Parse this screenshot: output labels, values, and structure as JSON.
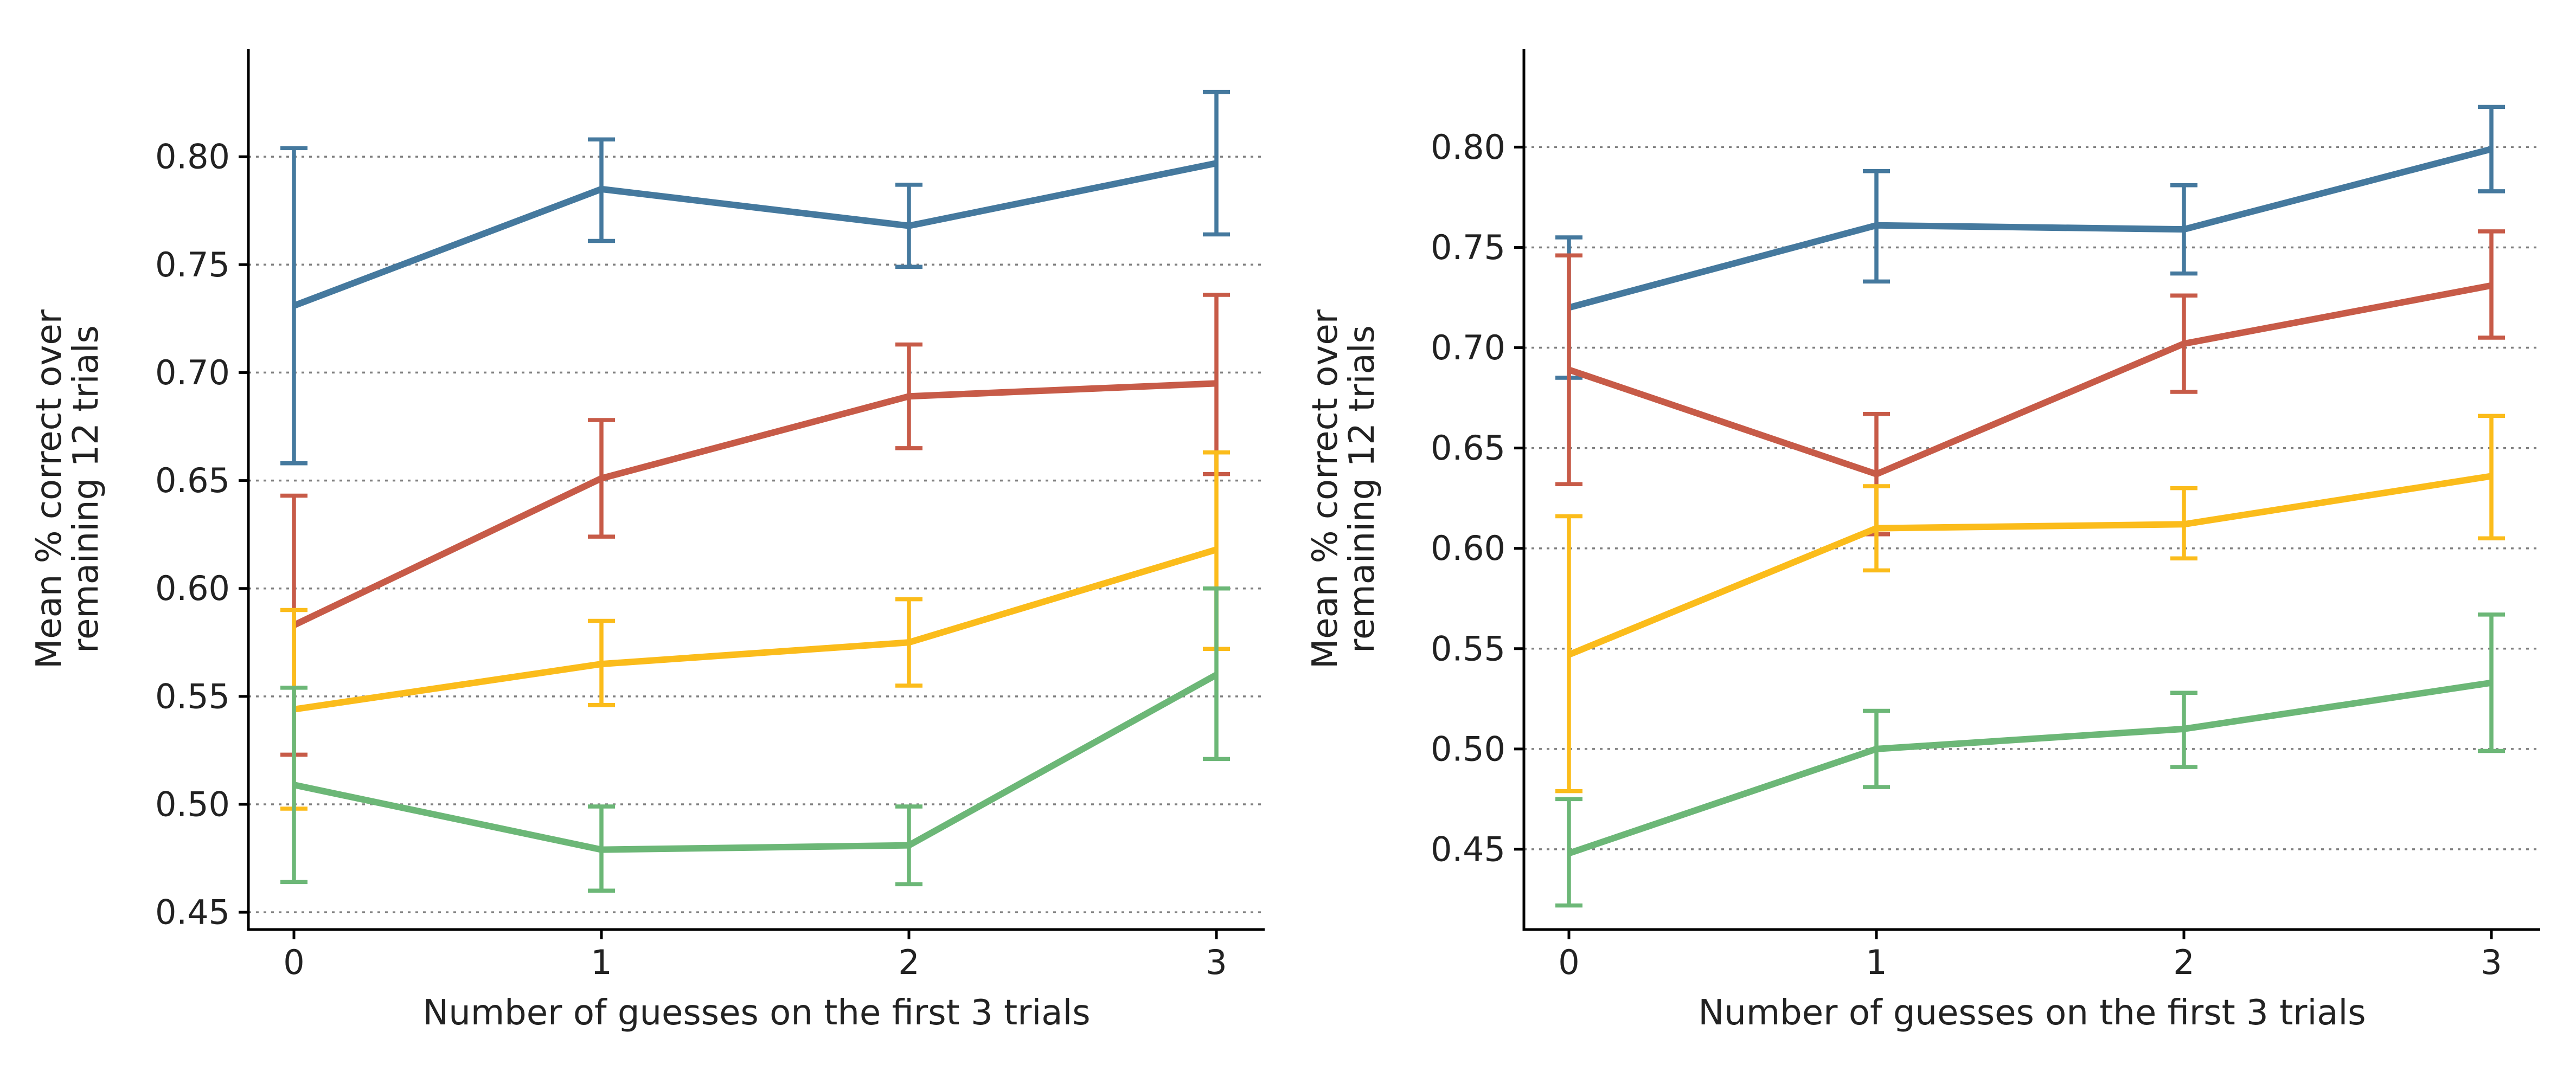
{
  "chart_data": [
    {
      "type": "line",
      "xlabel": "Number of guesses on the first 3 trials",
      "ylabel": [
        "Mean % correct over",
        "remaining 12 trials"
      ],
      "x": [
        0,
        1,
        2,
        3
      ],
      "xticks": [
        "0",
        "1",
        "2",
        "3"
      ],
      "ylim": [
        0.442,
        0.85
      ],
      "yticks": [
        0.45,
        0.5,
        0.55,
        0.6,
        0.65,
        0.7,
        0.75,
        0.8
      ],
      "ytick_labels": [
        "0.45",
        "0.50",
        "0.55",
        "0.60",
        "0.65",
        "0.70",
        "0.75",
        "0.80"
      ],
      "grid": "horizontal dotted",
      "series": [
        {
          "color": "#45799e",
          "values": [
            0.731,
            0.785,
            0.768,
            0.797
          ],
          "err_low": [
            0.658,
            0.761,
            0.749,
            0.764
          ],
          "err_high": [
            0.804,
            0.808,
            0.787,
            0.83
          ]
        },
        {
          "color": "#c75b48",
          "values": [
            0.583,
            0.651,
            0.689,
            0.695
          ],
          "err_low": [
            0.523,
            0.624,
            0.665,
            0.653
          ],
          "err_high": [
            0.643,
            0.678,
            0.713,
            0.736
          ]
        },
        {
          "color": "#fbbc1b",
          "values": [
            0.544,
            0.565,
            0.575,
            0.618
          ],
          "err_low": [
            0.498,
            0.546,
            0.555,
            0.572
          ],
          "err_high": [
            0.59,
            0.585,
            0.595,
            0.663
          ]
        },
        {
          "color": "#6cb777",
          "values": [
            0.509,
            0.479,
            0.481,
            0.56
          ],
          "err_low": [
            0.464,
            0.46,
            0.463,
            0.521
          ],
          "err_high": [
            0.554,
            0.499,
            0.499,
            0.6
          ]
        }
      ]
    },
    {
      "type": "line",
      "xlabel": "Number of guesses on the first 3 trials",
      "ylabel": [
        "Mean % correct over",
        "remaining 12 trials"
      ],
      "x": [
        0,
        1,
        2,
        3
      ],
      "xticks": [
        "0",
        "1",
        "2",
        "3"
      ],
      "ylim": [
        0.41,
        0.849
      ],
      "yticks": [
        0.45,
        0.5,
        0.55,
        0.6,
        0.65,
        0.7,
        0.75,
        0.8
      ],
      "ytick_labels": [
        "0.45",
        "0.50",
        "0.55",
        "0.60",
        "0.65",
        "0.70",
        "0.75",
        "0.80"
      ],
      "grid": "horizontal dotted",
      "series": [
        {
          "color": "#45799e",
          "values": [
            0.72,
            0.761,
            0.759,
            0.799
          ],
          "err_low": [
            0.685,
            0.733,
            0.737,
            0.778
          ],
          "err_high": [
            0.755,
            0.788,
            0.781,
            0.82
          ]
        },
        {
          "color": "#c75b48",
          "values": [
            0.689,
            0.637,
            0.702,
            0.731
          ],
          "err_low": [
            0.632,
            0.607,
            0.678,
            0.705
          ],
          "err_high": [
            0.746,
            0.667,
            0.726,
            0.758
          ]
        },
        {
          "color": "#fbbc1b",
          "values": [
            0.547,
            0.61,
            0.612,
            0.636
          ],
          "err_low": [
            0.479,
            0.589,
            0.595,
            0.605
          ],
          "err_high": [
            0.616,
            0.631,
            0.63,
            0.666
          ]
        },
        {
          "color": "#6cb777",
          "values": [
            0.448,
            0.5,
            0.51,
            0.533
          ],
          "err_low": [
            0.422,
            0.481,
            0.491,
            0.499
          ],
          "err_high": [
            0.475,
            0.519,
            0.528,
            0.567
          ]
        }
      ]
    }
  ]
}
